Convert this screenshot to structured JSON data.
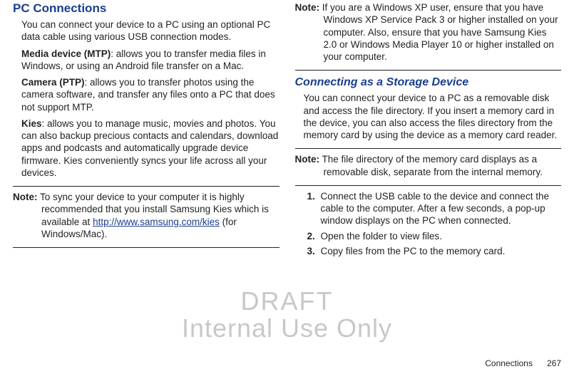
{
  "left": {
    "heading": "PC Connections",
    "intro": "You can connect your device to a PC using an optional PC data cable using various USB connection modes.",
    "p1_label": "Media device (MTP)",
    "p1_body": ": allows you to transfer media files in Windows, or using an Android file transfer on a Mac.",
    "p2_label": "Camera (PTP)",
    "p2_body": ": allows you to transfer photos using the camera software, and transfer any files onto a PC that does not support MTP.",
    "p3_label": "Kies",
    "p3_body": ": allows you to manage music, movies and photos. You can also backup precious contacts and calendars, download apps and podcasts and automatically upgrade device firmware. Kies conveniently syncs your life across all your devices.",
    "note_label": "Note:",
    "note_a": " To sync your device to your computer it is highly recommended that you install Samsung Kies which is available at ",
    "note_link_text": "http://www.samsung.com/kies",
    "note_b": " (for Windows/Mac)."
  },
  "right": {
    "note1_label": "Note:",
    "note1_body": " If you are a Windows XP user, ensure that you have Windows XP Service Pack 3 or higher installed on your computer. Also, ensure that you have Samsung Kies 2.0 or Windows Media Player 10 or higher installed on your computer.",
    "subheading": "Connecting as a Storage Device",
    "subintro": "You can connect your device to a PC as a removable disk and access the file directory. If you insert a memory card in the device, you can also access the files directory from the memory card by using the device as a memory card reader.",
    "note2_label": "Note:",
    "note2_body": " The file directory of the memory card displays as a removable disk, separate from the internal memory.",
    "step1": "Connect the USB cable to the device and connect the cable to the computer. After a few seconds, a pop-up window displays on the PC when connected.",
    "step2": "Open the folder to view files.",
    "step3": "Copy files from the PC to the memory card."
  },
  "watermark": {
    "line1": "DRAFT",
    "line2": "Internal Use Only"
  },
  "footer": {
    "section": "Connections",
    "page": "267"
  }
}
